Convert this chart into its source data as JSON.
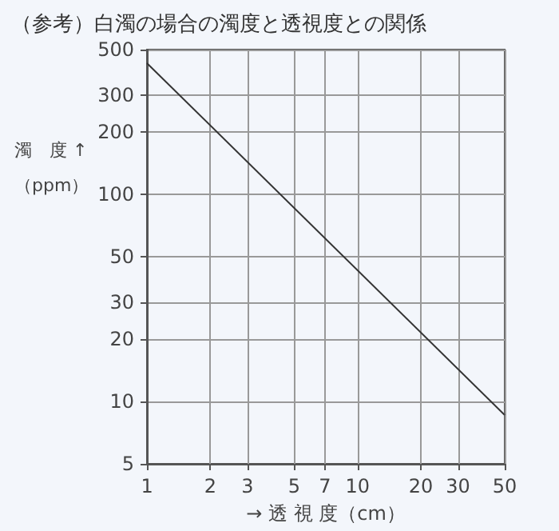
{
  "chart_data": {
    "type": "line",
    "title": "（参考）白濁の場合の濁度と透視度との関係",
    "xlabel": "→ 透 視 度（cm）",
    "ylabel": "濁　度 ↑\n（ppm）",
    "x": [
      1,
      50
    ],
    "series": [
      {
        "color": "#333333",
        "values": [
          430,
          8.6
        ]
      }
    ],
    "log": "xy",
    "xlim": [
      1,
      50
    ],
    "xticks": [
      1,
      2,
      3,
      5,
      7,
      10,
      20,
      30,
      50
    ],
    "ylim": [
      5,
      500
    ],
    "yticks": [
      5,
      10,
      20,
      30,
      50,
      100,
      200,
      300,
      500
    ],
    "grid": true,
    "marker": "none",
    "line_style": "solid"
  }
}
